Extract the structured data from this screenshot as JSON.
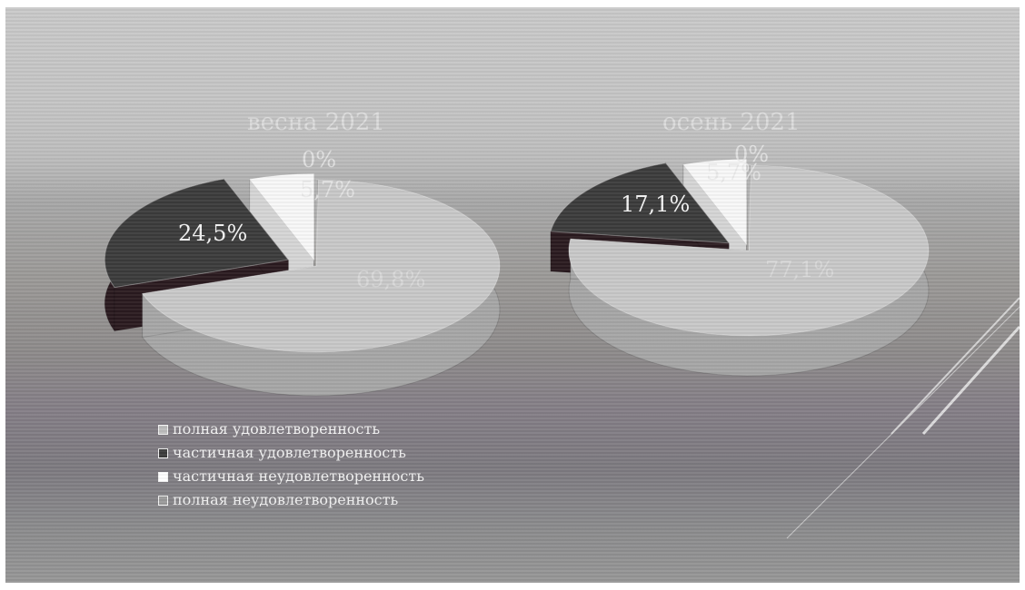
{
  "chart_data": [
    {
      "type": "pie",
      "title": "весна 2021",
      "slices": [
        {
          "name": "полная удовлетворенность",
          "value": 69.8,
          "label": "69,8%"
        },
        {
          "name": "частичная удовлетворенность",
          "value": 24.5,
          "label": "24,5%"
        },
        {
          "name": "частичная неудовлетворенность",
          "value": 5.7,
          "label": "5,7%"
        },
        {
          "name": "полная неудовлетворенность",
          "value": 0,
          "label": "0%"
        }
      ]
    },
    {
      "type": "pie",
      "title": "осень 2021",
      "slices": [
        {
          "name": "полная удовлетворенность",
          "value": 77.1,
          "label": "77,1%"
        },
        {
          "name": "частичная удовлетворенность",
          "value": 17.1,
          "label": "17,1%"
        },
        {
          "name": "частичная неудовлетворенность",
          "value": 5.7,
          "label": "5,7%"
        },
        {
          "name": "полная неудовлетворенность",
          "value": 0,
          "label": "0%"
        }
      ]
    }
  ],
  "legend": [
    {
      "label": "полная удовлетворенность",
      "color": "#bdbdbd"
    },
    {
      "label": "частичная удовлетворенность",
      "color": "#3c3c3c"
    },
    {
      "label": "частичная неудовлетворенность",
      "color": "#ffffff"
    },
    {
      "label": "полная неудовлетворенность",
      "color": "#9a9a9a"
    }
  ],
  "colors": {
    "top": [
      "#c8c8c8",
      "#3b3b3b",
      "#f8f8f8",
      "#a3a3a3"
    ],
    "side": [
      "#a6a6a6",
      "#2a1a1f",
      "#d5d5d5",
      "#8a8a8a"
    ]
  }
}
